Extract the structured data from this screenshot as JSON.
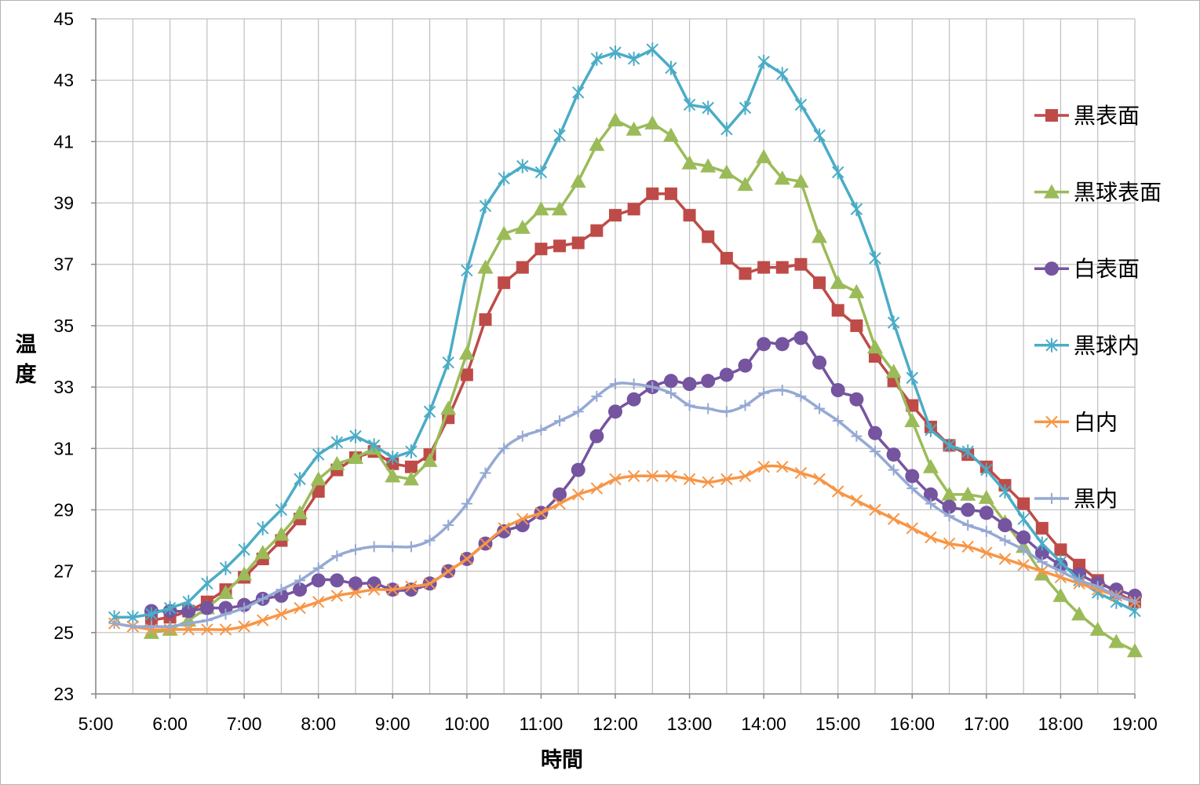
{
  "chart_data": {
    "type": "line",
    "xlabel": "時間",
    "ylabel": "温度",
    "xlim": [
      5,
      19
    ],
    "ylim": [
      23,
      45
    ],
    "y_ticks": [
      23,
      25,
      27,
      29,
      31,
      33,
      35,
      37,
      39,
      41,
      43,
      45
    ],
    "x_tick_labels": [
      "5:00",
      "6:00",
      "7:00",
      "8:00",
      "9:00",
      "10:00",
      "11:00",
      "12:00",
      "13:00",
      "14:00",
      "15:00",
      "16:00",
      "17:00",
      "18:00",
      "19:00"
    ],
    "grid": true,
    "legend_position": "right",
    "series": [
      {
        "name": "黒表面",
        "color": "#BE4B48",
        "marker": "square",
        "smooth": false,
        "x": [
          5.75,
          6.0,
          6.25,
          6.5,
          6.75,
          7.0,
          7.25,
          7.5,
          7.75,
          8.0,
          8.25,
          8.5,
          8.75,
          9.0,
          9.25,
          9.5,
          9.75,
          10.0,
          10.25,
          10.5,
          10.75,
          11.0,
          11.25,
          11.5,
          11.75,
          12.0,
          12.25,
          12.5,
          12.75,
          13.0,
          13.25,
          13.5,
          13.75,
          14.0,
          14.25,
          14.5,
          14.75,
          15.0,
          15.25,
          15.5,
          15.75,
          16.0,
          16.25,
          16.5,
          16.75,
          17.0,
          17.25,
          17.5,
          17.75,
          18.0,
          18.25,
          18.5,
          18.75,
          19.0
        ],
        "y": [
          25.4,
          25.5,
          25.7,
          26.0,
          26.4,
          26.8,
          27.4,
          28.0,
          28.7,
          29.6,
          30.3,
          30.7,
          30.9,
          30.5,
          30.4,
          30.8,
          32.0,
          33.4,
          35.2,
          36.4,
          36.9,
          37.5,
          37.6,
          37.7,
          38.1,
          38.6,
          38.8,
          39.3,
          39.3,
          38.6,
          37.9,
          37.2,
          36.7,
          36.9,
          36.9,
          37.0,
          36.4,
          35.5,
          35.0,
          34.0,
          33.2,
          32.4,
          31.7,
          31.1,
          30.8,
          30.4,
          29.8,
          29.2,
          28.4,
          27.7,
          27.2,
          26.7,
          26.3,
          26.0
        ]
      },
      {
        "name": "黒球表面",
        "color": "#9BBB59",
        "marker": "triangle",
        "smooth": false,
        "x": [
          5.75,
          6.0,
          6.25,
          6.5,
          6.75,
          7.0,
          7.25,
          7.5,
          7.75,
          8.0,
          8.25,
          8.5,
          8.75,
          9.0,
          9.25,
          9.5,
          9.75,
          10.0,
          10.25,
          10.5,
          10.75,
          11.0,
          11.25,
          11.5,
          11.75,
          12.0,
          12.25,
          12.5,
          12.75,
          13.0,
          13.25,
          13.5,
          13.75,
          14.0,
          14.25,
          14.5,
          14.75,
          15.0,
          15.25,
          15.5,
          15.75,
          16.0,
          16.25,
          16.5,
          16.75,
          17.0,
          17.25,
          17.5,
          17.75,
          18.0,
          18.25,
          18.5,
          18.75,
          19.0
        ],
        "y": [
          25.0,
          25.1,
          25.4,
          25.8,
          26.3,
          26.9,
          27.6,
          28.2,
          28.9,
          30.0,
          30.5,
          30.7,
          31.0,
          30.1,
          30.0,
          30.6,
          32.3,
          34.1,
          36.9,
          38.0,
          38.2,
          38.8,
          38.8,
          39.7,
          40.9,
          41.7,
          41.4,
          41.6,
          41.2,
          40.3,
          40.2,
          40.0,
          39.6,
          40.5,
          39.8,
          39.7,
          37.9,
          36.4,
          36.1,
          34.3,
          33.5,
          31.9,
          30.4,
          29.5,
          29.5,
          29.4,
          28.6,
          27.8,
          26.9,
          26.2,
          25.6,
          25.1,
          24.7,
          24.4
        ]
      },
      {
        "name": "白表面",
        "color": "#7554A0",
        "marker": "circle",
        "smooth": true,
        "x": [
          5.75,
          6.0,
          6.25,
          6.5,
          6.75,
          7.0,
          7.25,
          7.5,
          7.75,
          8.0,
          8.25,
          8.5,
          8.75,
          9.0,
          9.25,
          9.5,
          9.75,
          10.0,
          10.25,
          10.5,
          10.75,
          11.0,
          11.25,
          11.5,
          11.75,
          12.0,
          12.25,
          12.5,
          12.75,
          13.0,
          13.25,
          13.5,
          13.75,
          14.0,
          14.25,
          14.5,
          14.75,
          15.0,
          15.25,
          15.5,
          15.75,
          16.0,
          16.25,
          16.5,
          16.75,
          17.0,
          17.25,
          17.5,
          17.75,
          18.0,
          18.25,
          18.5,
          18.75,
          19.0
        ],
        "y": [
          25.7,
          25.7,
          25.7,
          25.8,
          25.8,
          25.9,
          26.1,
          26.2,
          26.4,
          26.7,
          26.7,
          26.6,
          26.6,
          26.4,
          26.4,
          26.6,
          27.0,
          27.4,
          27.9,
          28.3,
          28.5,
          28.9,
          29.5,
          30.3,
          31.4,
          32.2,
          32.6,
          33.0,
          33.2,
          33.1,
          33.2,
          33.4,
          33.7,
          34.4,
          34.4,
          34.6,
          33.8,
          32.9,
          32.6,
          31.5,
          30.8,
          30.1,
          29.5,
          29.1,
          29.0,
          28.9,
          28.5,
          28.1,
          27.6,
          27.2,
          26.9,
          26.6,
          26.4,
          26.2
        ]
      },
      {
        "name": "黒球内",
        "color": "#4BACC6",
        "marker": "star",
        "smooth": false,
        "x": [
          5.25,
          5.5,
          5.75,
          6.0,
          6.25,
          6.5,
          6.75,
          7.0,
          7.25,
          7.5,
          7.75,
          8.0,
          8.25,
          8.5,
          8.75,
          9.0,
          9.25,
          9.5,
          9.75,
          10.0,
          10.25,
          10.5,
          10.75,
          11.0,
          11.25,
          11.5,
          11.75,
          12.0,
          12.25,
          12.5,
          12.75,
          13.0,
          13.25,
          13.5,
          13.75,
          14.0,
          14.25,
          14.5,
          14.75,
          15.0,
          15.25,
          15.5,
          15.75,
          16.0,
          16.25,
          16.5,
          16.75,
          17.0,
          17.25,
          17.5,
          17.75,
          18.0,
          18.25,
          18.5,
          18.75,
          19.0
        ],
        "y": [
          25.5,
          25.5,
          25.6,
          25.8,
          26.0,
          26.6,
          27.1,
          27.7,
          28.4,
          29.0,
          30.0,
          30.8,
          31.2,
          31.4,
          31.1,
          30.7,
          30.9,
          32.2,
          33.8,
          36.8,
          38.9,
          39.8,
          40.2,
          40.0,
          41.2,
          42.6,
          43.7,
          43.9,
          43.7,
          44.0,
          43.4,
          42.2,
          42.1,
          41.4,
          42.1,
          43.6,
          43.2,
          42.2,
          41.2,
          40.0,
          38.8,
          37.2,
          35.1,
          33.3,
          31.6,
          31.1,
          30.9,
          30.3,
          29.6,
          28.7,
          27.9,
          27.3,
          26.7,
          26.3,
          26.0,
          25.7
        ]
      },
      {
        "name": "白内",
        "color": "#F79646",
        "marker": "x",
        "smooth": true,
        "x": [
          5.25,
          5.5,
          5.75,
          6.0,
          6.25,
          6.5,
          6.75,
          7.0,
          7.25,
          7.5,
          7.75,
          8.0,
          8.25,
          8.5,
          8.75,
          9.0,
          9.25,
          9.5,
          9.75,
          10.0,
          10.25,
          10.5,
          10.75,
          11.0,
          11.25,
          11.5,
          11.75,
          12.0,
          12.25,
          12.5,
          12.75,
          13.0,
          13.25,
          13.5,
          13.75,
          14.0,
          14.25,
          14.5,
          14.75,
          15.0,
          15.25,
          15.5,
          15.75,
          16.0,
          16.25,
          16.5,
          16.75,
          17.0,
          17.25,
          17.5,
          17.75,
          18.0,
          18.25,
          18.5,
          18.75,
          19.0
        ],
        "y": [
          25.3,
          25.2,
          25.1,
          25.1,
          25.1,
          25.1,
          25.1,
          25.2,
          25.4,
          25.6,
          25.8,
          26.0,
          26.2,
          26.3,
          26.4,
          26.4,
          26.5,
          26.6,
          27.0,
          27.4,
          27.9,
          28.4,
          28.7,
          28.9,
          29.2,
          29.5,
          29.7,
          30.0,
          30.1,
          30.1,
          30.1,
          30.0,
          29.9,
          30.0,
          30.1,
          30.4,
          30.4,
          30.2,
          30.0,
          29.6,
          29.3,
          29.0,
          28.7,
          28.4,
          28.1,
          27.9,
          27.8,
          27.6,
          27.4,
          27.2,
          27.0,
          26.8,
          26.6,
          26.4,
          26.2,
          26.0
        ]
      },
      {
        "name": "黒内",
        "color": "#95A9D3",
        "marker": "plus",
        "smooth": true,
        "x": [
          5.25,
          5.5,
          5.75,
          6.0,
          6.25,
          6.5,
          6.75,
          7.0,
          7.25,
          7.5,
          7.75,
          8.0,
          8.25,
          8.5,
          8.75,
          9.0,
          9.25,
          9.5,
          9.75,
          10.0,
          10.25,
          10.5,
          10.75,
          11.0,
          11.25,
          11.5,
          11.75,
          12.0,
          12.25,
          12.5,
          12.75,
          13.0,
          13.25,
          13.5,
          13.75,
          14.0,
          14.25,
          14.5,
          14.75,
          15.0,
          15.25,
          15.5,
          15.75,
          16.0,
          16.25,
          16.5,
          16.75,
          17.0,
          17.25,
          17.5,
          17.75,
          18.0,
          18.25,
          18.5,
          18.75,
          19.0
        ],
        "y": [
          25.3,
          25.2,
          25.2,
          25.2,
          25.3,
          25.4,
          25.6,
          25.8,
          26.1,
          26.4,
          26.7,
          27.1,
          27.5,
          27.7,
          27.8,
          27.8,
          27.8,
          28.0,
          28.5,
          29.2,
          30.2,
          31.0,
          31.4,
          31.6,
          31.9,
          32.2,
          32.7,
          33.1,
          33.1,
          33.0,
          32.8,
          32.4,
          32.3,
          32.2,
          32.4,
          32.8,
          32.9,
          32.7,
          32.3,
          31.9,
          31.4,
          30.9,
          30.3,
          29.7,
          29.2,
          28.8,
          28.5,
          28.3,
          28.0,
          27.7,
          27.3,
          27.0,
          26.7,
          26.5,
          26.2,
          26.0
        ]
      }
    ]
  }
}
